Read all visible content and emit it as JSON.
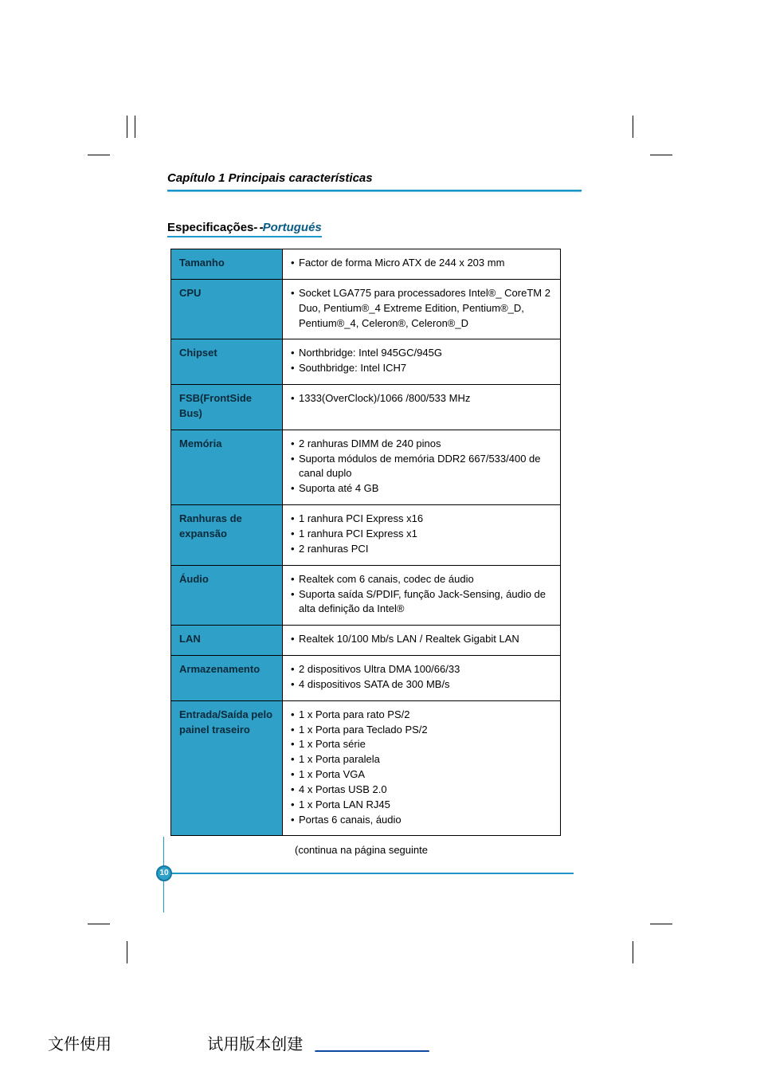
{
  "chapter_title": "Capítulo 1 Principais características",
  "section": {
    "label": "Especificações",
    "sep": "- -",
    "lang": "Portugués"
  },
  "rows": [
    {
      "label": "Tamanho",
      "items": [
        "Factor de forma Micro ATX de 244 x 203 mm"
      ]
    },
    {
      "label": "CPU",
      "items": [
        "Socket LGA775 para processadores Intel®_ CoreTM 2 Duo, Pentium®_4 Extreme Edition, Pentium®_D, Pentium®_4, Celeron®, Celeron®_D"
      ]
    },
    {
      "label": "Chipset",
      "items": [
        "Northbridge: Intel 945GC/945G",
        "Southbridge: Intel ICH7"
      ]
    },
    {
      "label": "FSB(FrontSide Bus)",
      "items": [
        "1333(OverClock)/1066 /800/533 MHz"
      ]
    },
    {
      "label": "Memória",
      "items": [
        "2 ranhuras DIMM de 240 pinos",
        "Suporta módulos de memória DDR2 667/533/400 de canal duplo",
        "Suporta até 4 GB"
      ]
    },
    {
      "label": "Ranhuras de expansão",
      "items": [
        "1 ranhura PCI Express x16",
        "1 ranhura PCI Express x1",
        "2 ranhuras PCI"
      ]
    },
    {
      "label": "Áudio",
      "items": [
        "Realtek com 6 canais, codec de áudio",
        "Suporta saída S/PDIF, função Jack-Sensing, áudio de alta definição da Intel®"
      ]
    },
    {
      "label": "LAN",
      "items": [
        "Realtek 10/100 Mb/s LAN / Realtek Gigabit LAN"
      ]
    },
    {
      "label": "Armazenamento",
      "items": [
        "2 dispositivos Ultra DMA 100/66/33",
        "4 dispositivos SATA de 300 MB/s"
      ]
    },
    {
      "label": "Entrada/Saída pelo painel traseiro",
      "items": [
        "1 x Porta para rato PS/2",
        "1 x Porta para Teclado PS/2",
        "1 x Porta série",
        "1 x Porta paralela",
        "1 x Porta VGA",
        "4 x Portas USB 2.0",
        "1 x Porta LAN RJ45",
        "Portas 6 canais, áudio"
      ]
    }
  ],
  "continue_text": "(continua na página seguinte",
  "page_number": "10",
  "bottom": {
    "left": "文件使用",
    "right": "试用版本创建"
  },
  "colors": {
    "header_bg": "#2fa0c8",
    "rule": "#1e98cb",
    "link": "#0b4aa0"
  }
}
